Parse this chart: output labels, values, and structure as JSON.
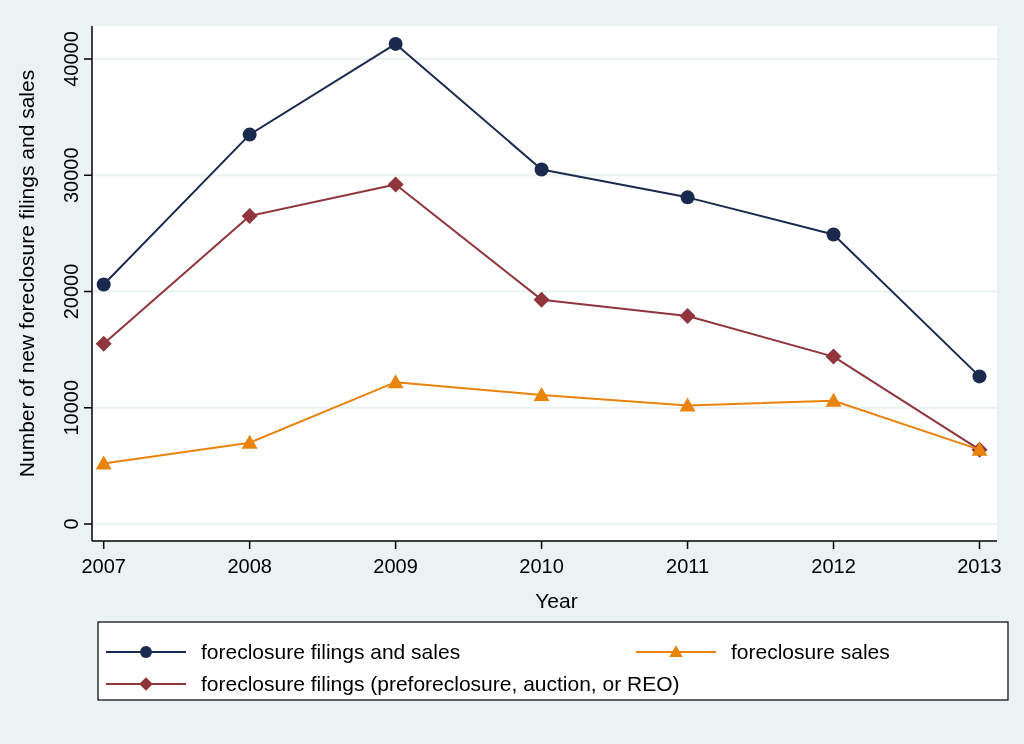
{
  "chart_data": {
    "type": "line",
    "xlabel": "Year",
    "ylabel": "Number of new foreclosure filings and sales",
    "x": [
      2007,
      2008,
      2009,
      2010,
      2011,
      2012,
      2013
    ],
    "series": [
      {
        "name": "foreclosure filings and sales",
        "color": "#1a2a4f",
        "marker": "circle",
        "values": [
          20600,
          33500,
          41300,
          30500,
          28100,
          24900,
          12700
        ]
      },
      {
        "name": "foreclosure sales",
        "color": "#e8830c",
        "marker": "triangle",
        "values": [
          5200,
          7000,
          12200,
          11100,
          10200,
          10600,
          6400
        ]
      },
      {
        "name": "foreclosure filings (preforeclosure, auction, or REO)",
        "color": "#90353b",
        "marker": "diamond",
        "values": [
          15500,
          26500,
          29200,
          19300,
          17900,
          14400,
          6400
        ]
      }
    ],
    "xlim": [
      2006.92,
      2013.12
    ],
    "xticks": [
      2007,
      2008,
      2009,
      2010,
      2011,
      2012,
      2013
    ],
    "ylim": [
      -1460,
      42840
    ],
    "yticks": [
      0,
      10000,
      20000,
      30000,
      40000
    ],
    "grid": "y",
    "legend": "bottom",
    "line_style": "solid"
  }
}
